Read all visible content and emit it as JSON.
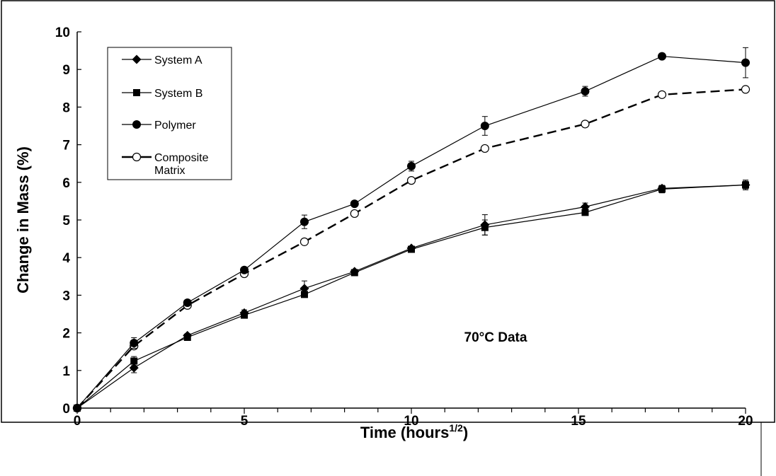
{
  "chart_data": {
    "type": "line",
    "title": "",
    "xlabel": "Time (hours",
    "xlabel_sup": "1/2",
    "xlabel_end": ")",
    "ylabel": "Change in Mass (%)",
    "xlim": [
      0,
      20
    ],
    "ylim": [
      0,
      10
    ],
    "x_major_ticks": [
      0,
      5,
      10,
      15,
      20
    ],
    "x_minor_step": 1,
    "y_ticks": [
      0,
      1,
      2,
      3,
      4,
      5,
      6,
      7,
      8,
      9,
      10
    ],
    "grid": false,
    "legend_position": "top-left",
    "annotation": "70°C Data",
    "series": [
      {
        "name": "System A",
        "marker": "diamond",
        "line_style": "solid",
        "points": [
          {
            "x": 0,
            "y": 0,
            "err": 0
          },
          {
            "x": 1.7,
            "y": 1.07,
            "err": 0.13
          },
          {
            "x": 3.3,
            "y": 1.93,
            "err": 0.05
          },
          {
            "x": 5.0,
            "y": 2.53,
            "err": 0.08
          },
          {
            "x": 6.8,
            "y": 3.18,
            "err": 0.2
          },
          {
            "x": 8.3,
            "y": 3.63,
            "err": 0.05
          },
          {
            "x": 10.0,
            "y": 4.25,
            "err": 0.04
          },
          {
            "x": 12.2,
            "y": 4.87,
            "err": 0.27
          },
          {
            "x": 15.2,
            "y": 5.35,
            "err": 0.1
          },
          {
            "x": 17.5,
            "y": 5.84,
            "err": 0.08
          },
          {
            "x": 20.0,
            "y": 5.93,
            "err": 0.1
          }
        ]
      },
      {
        "name": "System B",
        "marker": "square",
        "line_style": "solid",
        "points": [
          {
            "x": 0,
            "y": 0,
            "err": 0
          },
          {
            "x": 1.7,
            "y": 1.25,
            "err": 0.12
          },
          {
            "x": 3.3,
            "y": 1.88,
            "err": 0.05
          },
          {
            "x": 5.0,
            "y": 2.47,
            "err": 0.05
          },
          {
            "x": 6.8,
            "y": 3.02,
            "err": 0.05
          },
          {
            "x": 8.3,
            "y": 3.6,
            "err": 0.05
          },
          {
            "x": 10.0,
            "y": 4.22,
            "err": 0.05
          },
          {
            "x": 12.2,
            "y": 4.8,
            "err": 0.2
          },
          {
            "x": 15.2,
            "y": 5.2,
            "err": 0.05
          },
          {
            "x": 17.5,
            "y": 5.82,
            "err": 0.1
          },
          {
            "x": 20.0,
            "y": 5.93,
            "err": 0.13
          }
        ]
      },
      {
        "name": "Polymer",
        "marker": "filled-circle",
        "line_style": "solid",
        "points": [
          {
            "x": 0,
            "y": 0,
            "err": 0
          },
          {
            "x": 1.7,
            "y": 1.73,
            "err": 0.14
          },
          {
            "x": 3.3,
            "y": 2.8,
            "err": 0.05
          },
          {
            "x": 5.0,
            "y": 3.67,
            "err": 0.05
          },
          {
            "x": 6.8,
            "y": 4.95,
            "err": 0.18
          },
          {
            "x": 8.3,
            "y": 5.43,
            "err": 0.05
          },
          {
            "x": 10.0,
            "y": 6.43,
            "err": 0.13
          },
          {
            "x": 12.2,
            "y": 7.5,
            "err": 0.25
          },
          {
            "x": 15.2,
            "y": 8.42,
            "err": 0.13
          },
          {
            "x": 17.5,
            "y": 9.35,
            "err": 0.05
          },
          {
            "x": 20.0,
            "y": 9.18,
            "err": 0.4
          }
        ]
      },
      {
        "name": "Composite Matrix",
        "name_lines": [
          "Composite",
          "Matrix"
        ],
        "marker": "open-circle",
        "line_style": "dashed",
        "points": [
          {
            "x": 0,
            "y": 0,
            "err": 0
          },
          {
            "x": 1.7,
            "y": 1.65,
            "err": 0
          },
          {
            "x": 3.3,
            "y": 2.73,
            "err": 0
          },
          {
            "x": 5.0,
            "y": 3.57,
            "err": 0
          },
          {
            "x": 6.8,
            "y": 4.42,
            "err": 0
          },
          {
            "x": 8.3,
            "y": 5.17,
            "err": 0
          },
          {
            "x": 10.0,
            "y": 6.05,
            "err": 0
          },
          {
            "x": 12.2,
            "y": 6.9,
            "err": 0
          },
          {
            "x": 15.2,
            "y": 7.55,
            "err": 0
          },
          {
            "x": 17.5,
            "y": 8.33,
            "err": 0
          },
          {
            "x": 20.0,
            "y": 8.47,
            "err": 0
          }
        ]
      }
    ]
  }
}
